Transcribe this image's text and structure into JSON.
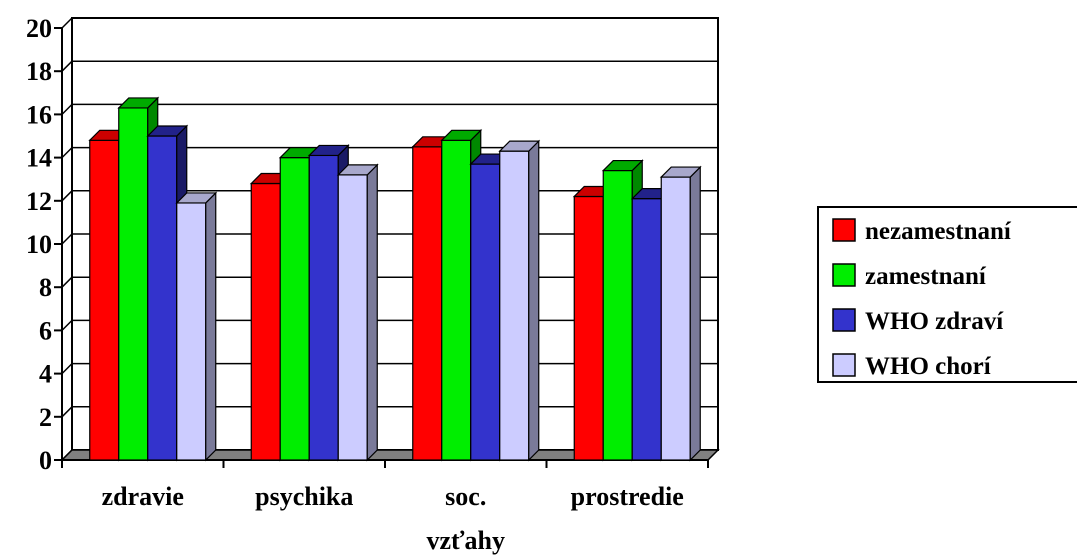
{
  "chart_data": {
    "type": "bar",
    "title": "",
    "xlabel": "",
    "ylabel": "",
    "ylim": [
      0,
      20
    ],
    "yticks": [
      0,
      2,
      4,
      6,
      8,
      10,
      12,
      14,
      16,
      18,
      20
    ],
    "categories": [
      [
        "zdravie"
      ],
      [
        "psychika"
      ],
      [
        "soc.",
        "vzťahy"
      ],
      [
        "prostredie"
      ]
    ],
    "series": [
      {
        "name": "nezamestnaní",
        "values": [
          14.8,
          12.8,
          14.5,
          12.2
        ]
      },
      {
        "name": "zamestnaní",
        "values": [
          16.3,
          14.0,
          14.8,
          13.4
        ]
      },
      {
        "name": "WHO zdraví",
        "values": [
          15.0,
          14.1,
          13.7,
          12.1
        ]
      },
      {
        "name": "WHO chorí",
        "values": [
          11.9,
          13.2,
          14.3,
          13.1
        ]
      }
    ],
    "grid": true,
    "legend": "right",
    "colors": {
      "series": [
        "#ff0000",
        "#00ee00",
        "#3333cc",
        "#ccccff"
      ],
      "side": [
        "#990000",
        "#008800",
        "#1a1a66",
        "#7a7a99"
      ],
      "top": [
        "#cc0000",
        "#00aa00",
        "#22228a",
        "#a8a8cc"
      ],
      "floor": "#808080"
    }
  }
}
